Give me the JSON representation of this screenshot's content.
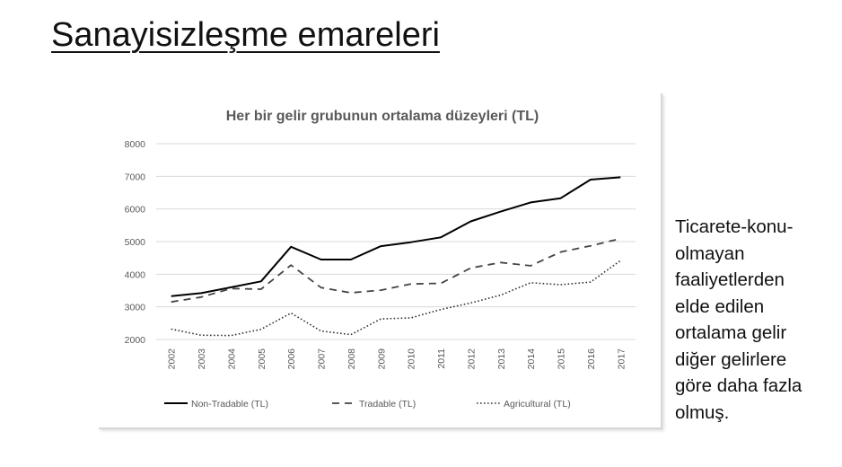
{
  "slide": {
    "title": "Sanayisizleşme emareleri",
    "side_text": "Ticarete-konu-\nolmayan\nfaaliyetlerden\nelde edilen\nortalama gelir\ndiğer gelirlere\ngöre daha fazla\nolmuş."
  },
  "chart_data": {
    "type": "line",
    "title": "Her bir gelir grubunun ortalama düzeyleri (TL)",
    "x": [
      "2002",
      "2003",
      "2004",
      "2005",
      "2006",
      "2007",
      "2008",
      "2009",
      "2010",
      "2011",
      "2012",
      "2013",
      "2014",
      "2015",
      "2016",
      "2017"
    ],
    "ylim": [
      2000,
      8000
    ],
    "yticks": [
      2000,
      3000,
      4000,
      5000,
      6000,
      7000,
      8000
    ],
    "grid": true,
    "legend": "bottom",
    "series": [
      {
        "name": "Non-Tradable (TL)",
        "style": "solid",
        "color": "#000000",
        "values": [
          3330,
          3420,
          3600,
          3780,
          4840,
          4450,
          4450,
          4860,
          4980,
          5130,
          5620,
          5920,
          6200,
          6330,
          6900,
          6970
        ]
      },
      {
        "name": "Tradable (TL)",
        "style": "dashed",
        "color": "#444444",
        "values": [
          3150,
          3300,
          3560,
          3540,
          4280,
          3590,
          3430,
          3510,
          3700,
          3720,
          4190,
          4360,
          4260,
          4680,
          4870,
          5090
        ]
      },
      {
        "name": "Agricultural (TL)",
        "style": "dotted",
        "color": "#333333",
        "values": [
          2320,
          2130,
          2120,
          2310,
          2810,
          2260,
          2150,
          2630,
          2660,
          2920,
          3120,
          3360,
          3740,
          3680,
          3760,
          4420
        ]
      }
    ]
  }
}
